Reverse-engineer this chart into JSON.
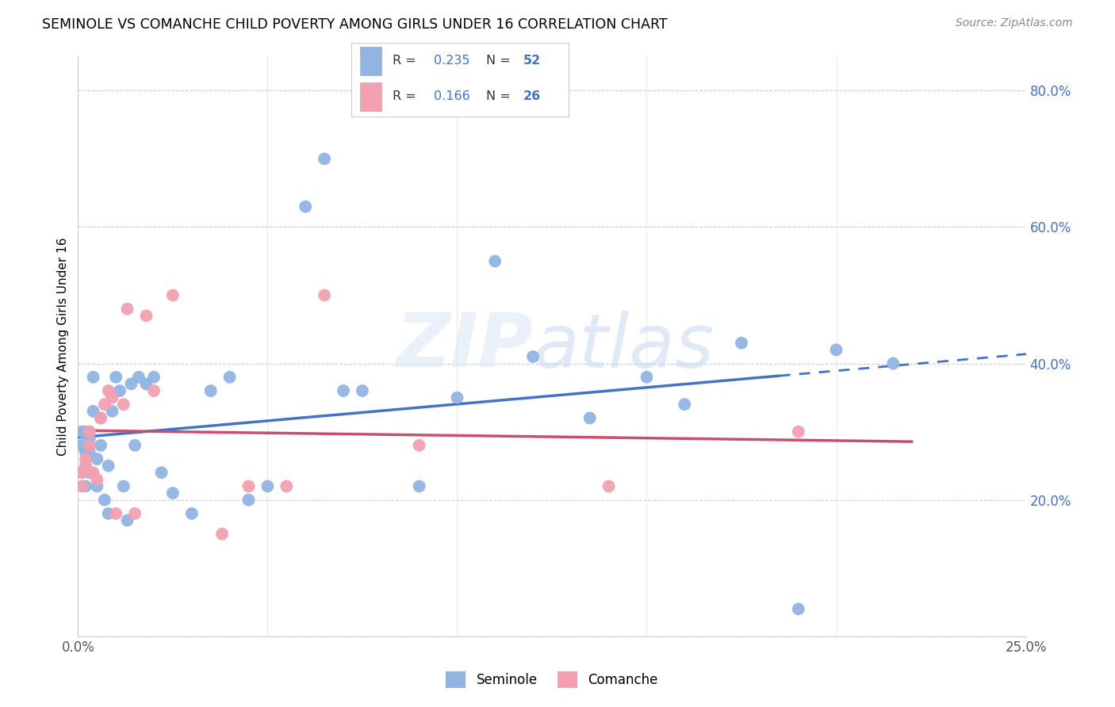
{
  "title": "SEMINOLE VS COMANCHE CHILD POVERTY AMONG GIRLS UNDER 16 CORRELATION CHART",
  "source": "Source: ZipAtlas.com",
  "ylabel_label": "Child Poverty Among Girls Under 16",
  "xlim": [
    0.0,
    0.25
  ],
  "ylim": [
    0.0,
    0.85
  ],
  "seminole_color": "#92b4e3",
  "comanche_color": "#f4a0b0",
  "trend_blue_color": "#4472C4",
  "trend_pink_color": "#c9506a",
  "legend_val_color": "#4472C4",
  "seminole_R": 0.235,
  "seminole_N": 52,
  "comanche_R": 0.166,
  "comanche_N": 26,
  "sem_x": [
    0.001,
    0.001,
    0.001,
    0.002,
    0.002,
    0.002,
    0.002,
    0.003,
    0.003,
    0.003,
    0.003,
    0.004,
    0.004,
    0.005,
    0.005,
    0.006,
    0.006,
    0.007,
    0.008,
    0.008,
    0.009,
    0.01,
    0.011,
    0.012,
    0.013,
    0.014,
    0.015,
    0.016,
    0.018,
    0.02,
    0.022,
    0.025,
    0.03,
    0.035,
    0.04,
    0.045,
    0.05,
    0.06,
    0.065,
    0.07,
    0.075,
    0.09,
    0.1,
    0.11,
    0.12,
    0.135,
    0.15,
    0.16,
    0.175,
    0.19,
    0.2,
    0.215
  ],
  "sem_y": [
    0.24,
    0.28,
    0.3,
    0.22,
    0.25,
    0.27,
    0.3,
    0.24,
    0.27,
    0.29,
    0.3,
    0.33,
    0.38,
    0.22,
    0.26,
    0.28,
    0.32,
    0.2,
    0.25,
    0.18,
    0.33,
    0.38,
    0.36,
    0.22,
    0.17,
    0.37,
    0.28,
    0.38,
    0.37,
    0.38,
    0.24,
    0.21,
    0.18,
    0.36,
    0.38,
    0.2,
    0.22,
    0.63,
    0.7,
    0.36,
    0.36,
    0.22,
    0.35,
    0.55,
    0.41,
    0.32,
    0.38,
    0.34,
    0.43,
    0.04,
    0.42,
    0.4
  ],
  "com_x": [
    0.001,
    0.001,
    0.002,
    0.002,
    0.003,
    0.003,
    0.004,
    0.005,
    0.006,
    0.007,
    0.008,
    0.009,
    0.01,
    0.012,
    0.013,
    0.015,
    0.018,
    0.02,
    0.025,
    0.038,
    0.045,
    0.055,
    0.065,
    0.09,
    0.14,
    0.19
  ],
  "com_y": [
    0.22,
    0.24,
    0.26,
    0.25,
    0.28,
    0.3,
    0.24,
    0.23,
    0.32,
    0.34,
    0.36,
    0.35,
    0.18,
    0.34,
    0.48,
    0.18,
    0.47,
    0.36,
    0.5,
    0.15,
    0.22,
    0.22,
    0.5,
    0.28,
    0.22,
    0.3
  ],
  "x_ticks": [
    0.0,
    0.05,
    0.1,
    0.15,
    0.2,
    0.25
  ],
  "x_tick_labels": [
    "0.0%",
    "",
    "",
    "",
    "",
    "25.0%"
  ],
  "y_ticks": [
    0.0,
    0.2,
    0.4,
    0.6,
    0.8
  ],
  "y_tick_labels": [
    "",
    "20.0%",
    "40.0%",
    "60.0%",
    "80.0%"
  ]
}
